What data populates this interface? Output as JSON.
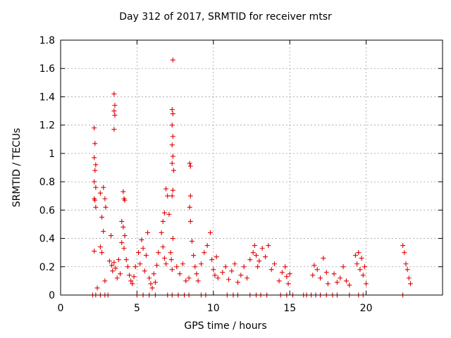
{
  "chart_data": {
    "type": "scatter",
    "title": "Day 312 of 2017, SRMTID for receiver mtsr",
    "xlabel": "GPS time / hours",
    "ylabel": "SRMTID / TECUs",
    "xlim": [
      0,
      25
    ],
    "ylim": [
      0,
      1.8
    ],
    "xticks": [
      0,
      5,
      10,
      15,
      20
    ],
    "yticks": [
      0,
      0.2,
      0.4,
      0.6,
      0.8,
      1,
      1.2,
      1.4,
      1.6,
      1.8
    ],
    "grid": true,
    "marker": "+",
    "color": "#e00000",
    "series": [
      {
        "name": "",
        "points": [
          [
            2.1,
            0.0
          ],
          [
            2.3,
            0.0
          ],
          [
            2.6,
            0.0
          ],
          [
            2.9,
            0.0
          ],
          [
            3.1,
            0.0
          ],
          [
            5.0,
            0.0
          ],
          [
            5.4,
            0.0
          ],
          [
            5.8,
            0.0
          ],
          [
            6.2,
            0.0
          ],
          [
            7.0,
            0.0
          ],
          [
            7.3,
            0.0
          ],
          [
            7.7,
            0.0
          ],
          [
            8.1,
            0.0
          ],
          [
            8.4,
            0.0
          ],
          [
            9.2,
            0.0
          ],
          [
            9.5,
            0.0
          ],
          [
            10.9,
            0.0
          ],
          [
            11.3,
            0.0
          ],
          [
            11.6,
            0.0
          ],
          [
            12.4,
            0.0
          ],
          [
            12.8,
            0.0
          ],
          [
            13.1,
            0.0
          ],
          [
            13.5,
            0.0
          ],
          [
            14.4,
            0.0
          ],
          [
            14.8,
            0.0
          ],
          [
            15.2,
            0.0
          ],
          [
            15.9,
            0.0
          ],
          [
            16.1,
            0.0
          ],
          [
            16.4,
            0.0
          ],
          [
            16.7,
            0.0
          ],
          [
            17.0,
            0.0
          ],
          [
            17.4,
            0.0
          ],
          [
            17.8,
            0.0
          ],
          [
            18.1,
            0.0
          ],
          [
            18.9,
            0.0
          ],
          [
            19.5,
            0.0
          ],
          [
            19.8,
            0.0
          ],
          [
            22.4,
            0.0
          ],
          [
            2.2,
            1.18
          ],
          [
            2.25,
            1.07
          ],
          [
            2.2,
            0.97
          ],
          [
            2.3,
            0.92
          ],
          [
            2.25,
            0.88
          ],
          [
            2.2,
            0.8
          ],
          [
            2.3,
            0.76
          ],
          [
            2.2,
            0.68
          ],
          [
            2.25,
            0.67
          ],
          [
            2.3,
            0.62
          ],
          [
            2.2,
            0.31
          ],
          [
            2.4,
            0.05
          ],
          [
            2.6,
            0.72
          ],
          [
            2.7,
            0.55
          ],
          [
            2.8,
            0.76
          ],
          [
            2.9,
            0.68
          ],
          [
            2.95,
            0.62
          ],
          [
            2.7,
            0.3
          ],
          [
            2.8,
            0.45
          ],
          [
            2.6,
            0.34
          ],
          [
            2.9,
            0.1
          ],
          [
            3.5,
            1.42
          ],
          [
            3.55,
            1.34
          ],
          [
            3.5,
            1.3
          ],
          [
            3.55,
            1.27
          ],
          [
            3.5,
            1.17
          ],
          [
            3.3,
            0.42
          ],
          [
            3.2,
            0.24
          ],
          [
            3.35,
            0.21
          ],
          [
            3.4,
            0.17
          ],
          [
            3.5,
            0.23
          ],
          [
            3.6,
            0.19
          ],
          [
            3.7,
            0.12
          ],
          [
            3.8,
            0.25
          ],
          [
            3.9,
            0.15
          ],
          [
            4.1,
            0.73
          ],
          [
            4.15,
            0.68
          ],
          [
            4.2,
            0.67
          ],
          [
            4.0,
            0.52
          ],
          [
            4.1,
            0.48
          ],
          [
            4.2,
            0.42
          ],
          [
            4.0,
            0.37
          ],
          [
            4.15,
            0.33
          ],
          [
            4.3,
            0.25
          ],
          [
            4.4,
            0.2
          ],
          [
            4.5,
            0.14
          ],
          [
            4.6,
            0.1
          ],
          [
            4.7,
            0.08
          ],
          [
            4.8,
            0.13
          ],
          [
            4.9,
            0.2
          ],
          [
            5.1,
            0.3
          ],
          [
            5.2,
            0.22
          ],
          [
            5.3,
            0.39
          ],
          [
            5.4,
            0.33
          ],
          [
            5.5,
            0.17
          ],
          [
            5.6,
            0.28
          ],
          [
            5.7,
            0.44
          ],
          [
            5.8,
            0.12
          ],
          [
            5.9,
            0.08
          ],
          [
            6.0,
            0.05
          ],
          [
            6.1,
            0.15
          ],
          [
            6.2,
            0.09
          ],
          [
            6.3,
            0.21
          ],
          [
            6.4,
            0.3
          ],
          [
            6.6,
            0.44
          ],
          [
            6.7,
            0.52
          ],
          [
            6.8,
            0.58
          ],
          [
            6.9,
            0.75
          ],
          [
            7.0,
            0.7
          ],
          [
            7.1,
            0.57
          ],
          [
            7.2,
            0.3
          ],
          [
            7.25,
            0.25
          ],
          [
            7.3,
            0.18
          ],
          [
            7.35,
            0.4
          ],
          [
            6.7,
            0.34
          ],
          [
            6.8,
            0.26
          ],
          [
            6.9,
            0.22
          ],
          [
            7.35,
            1.66
          ],
          [
            7.3,
            1.31
          ],
          [
            7.35,
            1.28
          ],
          [
            7.3,
            1.2
          ],
          [
            7.35,
            1.12
          ],
          [
            7.3,
            1.06
          ],
          [
            7.35,
            0.98
          ],
          [
            7.3,
            0.93
          ],
          [
            7.4,
            0.88
          ],
          [
            7.35,
            0.74
          ],
          [
            7.3,
            0.7
          ],
          [
            7.6,
            0.2
          ],
          [
            7.8,
            0.15
          ],
          [
            8.0,
            0.22
          ],
          [
            8.2,
            0.1
          ],
          [
            8.4,
            0.12
          ],
          [
            8.45,
            0.93
          ],
          [
            8.5,
            0.91
          ],
          [
            8.5,
            0.7
          ],
          [
            8.45,
            0.62
          ],
          [
            8.5,
            0.52
          ],
          [
            8.6,
            0.38
          ],
          [
            8.7,
            0.28
          ],
          [
            8.8,
            0.2
          ],
          [
            8.9,
            0.15
          ],
          [
            9.0,
            0.1
          ],
          [
            9.2,
            0.22
          ],
          [
            9.4,
            0.3
          ],
          [
            9.6,
            0.35
          ],
          [
            9.8,
            0.44
          ],
          [
            9.9,
            0.25
          ],
          [
            10.0,
            0.18
          ],
          [
            10.1,
            0.14
          ],
          [
            10.2,
            0.27
          ],
          [
            10.3,
            0.12
          ],
          [
            10.6,
            0.16
          ],
          [
            10.8,
            0.2
          ],
          [
            11.0,
            0.11
          ],
          [
            11.2,
            0.17
          ],
          [
            11.4,
            0.22
          ],
          [
            11.6,
            0.09
          ],
          [
            11.8,
            0.14
          ],
          [
            12.0,
            0.2
          ],
          [
            12.2,
            0.12
          ],
          [
            12.4,
            0.25
          ],
          [
            12.6,
            0.3
          ],
          [
            12.7,
            0.35
          ],
          [
            12.8,
            0.28
          ],
          [
            12.9,
            0.2
          ],
          [
            13.0,
            0.24
          ],
          [
            13.2,
            0.33
          ],
          [
            13.4,
            0.27
          ],
          [
            13.6,
            0.35
          ],
          [
            13.8,
            0.18
          ],
          [
            14.0,
            0.22
          ],
          [
            14.3,
            0.1
          ],
          [
            14.5,
            0.16
          ],
          [
            14.7,
            0.2
          ],
          [
            14.8,
            0.13
          ],
          [
            14.9,
            0.08
          ],
          [
            15.0,
            0.15
          ],
          [
            16.5,
            0.14
          ],
          [
            16.6,
            0.21
          ],
          [
            16.8,
            0.18
          ],
          [
            17.0,
            0.12
          ],
          [
            17.2,
            0.26
          ],
          [
            17.4,
            0.16
          ],
          [
            17.5,
            0.08
          ],
          [
            17.9,
            0.15
          ],
          [
            18.1,
            0.09
          ],
          [
            18.3,
            0.12
          ],
          [
            18.5,
            0.2
          ],
          [
            18.7,
            0.1
          ],
          [
            18.9,
            0.07
          ],
          [
            19.3,
            0.28
          ],
          [
            19.4,
            0.22
          ],
          [
            19.5,
            0.3
          ],
          [
            19.6,
            0.18
          ],
          [
            19.7,
            0.26
          ],
          [
            19.8,
            0.14
          ],
          [
            19.9,
            0.2
          ],
          [
            20.0,
            0.08
          ],
          [
            22.4,
            0.35
          ],
          [
            22.5,
            0.3
          ],
          [
            22.6,
            0.22
          ],
          [
            22.7,
            0.18
          ],
          [
            22.8,
            0.12
          ],
          [
            22.9,
            0.08
          ]
        ]
      }
    ]
  }
}
